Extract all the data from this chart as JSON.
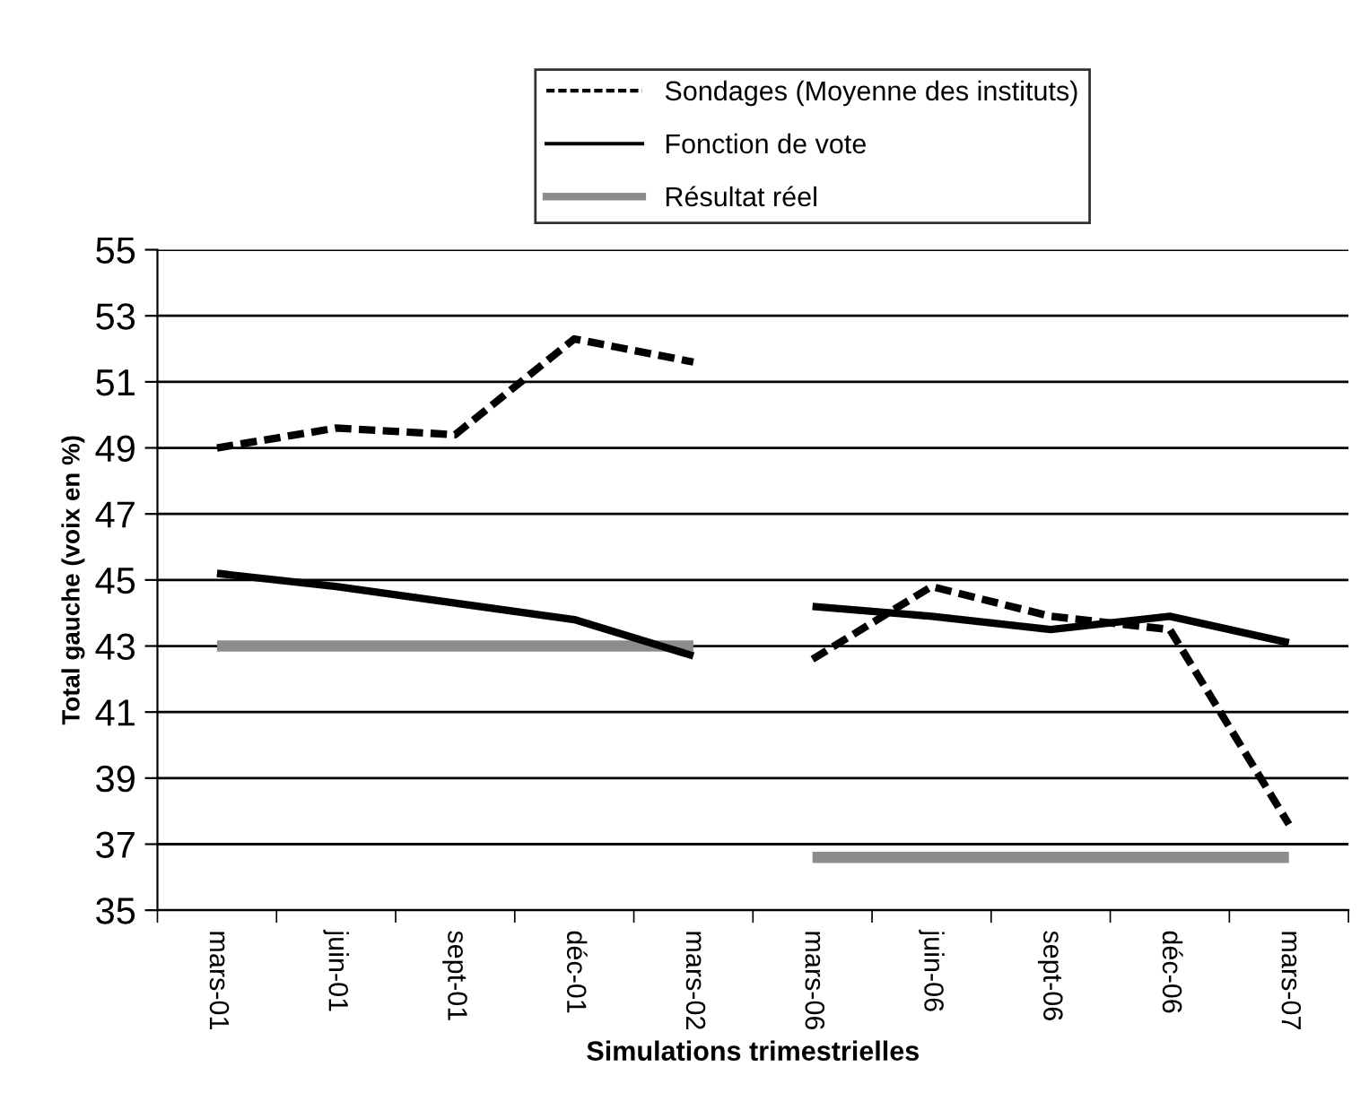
{
  "chart_data": {
    "type": "line",
    "xlabel": "Simulations trimestrielles",
    "ylabel": "Total gauche (voix en %)",
    "categories": [
      "mars-01",
      "juin-01",
      "sept-01",
      "déc-01",
      "mars-02",
      "mars-06",
      "juin-06",
      "sept-06",
      "déc-06",
      "mars-07"
    ],
    "series": [
      {
        "name": "Sondages (Moyenne des instituts)",
        "color": "#000000",
        "line_style": "dashed",
        "values": [
          49.0,
          49.6,
          49.4,
          52.3,
          51.6,
          null,
          null,
          null,
          null,
          null
        ]
      },
      {
        "name": "Fonction de vote",
        "color": "#000000",
        "line_style": "solid",
        "values": [
          45.2,
          44.8,
          44.3,
          43.8,
          42.7,
          null,
          null,
          null,
          null,
          null
        ]
      },
      {
        "name": "Résultat réel",
        "color": "#8c8c8c",
        "line_style": "solid",
        "values": [
          43.0,
          43.0,
          43.0,
          43.0,
          43.0,
          null,
          null,
          null,
          null,
          null
        ]
      },
      {
        "color": "#000000",
        "line_style": "dashed",
        "values": [
          null,
          null,
          null,
          null,
          null,
          42.6,
          44.8,
          43.9,
          43.5,
          37.6
        ]
      },
      {
        "color": "#000000",
        "line_style": "solid",
        "values": [
          null,
          null,
          null,
          null,
          null,
          44.2,
          43.9,
          43.5,
          43.9,
          43.1
        ]
      },
      {
        "color": "#8c8c8c",
        "line_style": "solid",
        "values": [
          null,
          null,
          null,
          null,
          null,
          36.6,
          36.6,
          36.6,
          36.6,
          36.6
        ]
      }
    ],
    "ylim": [
      35,
      55
    ],
    "yticks": [
      35,
      37,
      39,
      41,
      43,
      45,
      47,
      49,
      51,
      53,
      55
    ],
    "grid": "y",
    "legend": "top",
    "marker": "none"
  }
}
